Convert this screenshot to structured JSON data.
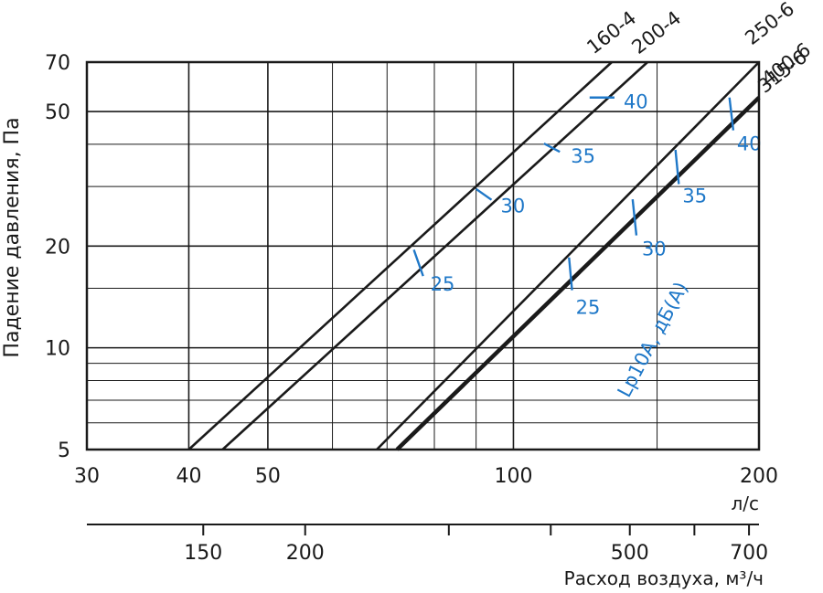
{
  "chart_data": {
    "type": "line",
    "x_scale": "log",
    "y_scale": "log",
    "xlim": [
      30,
      200
    ],
    "ylim": [
      5,
      70
    ],
    "x_ticks": [
      30,
      40,
      50,
      100,
      200
    ],
    "x_tick_labels": [
      "30",
      "40",
      "50",
      "100",
      "200"
    ],
    "x_minor_gridlines": [
      60,
      70,
      80,
      90,
      150
    ],
    "y_ticks": [
      5,
      10,
      20,
      50,
      70
    ],
    "y_tick_labels": [
      "5",
      "10",
      "20",
      "50",
      "70"
    ],
    "y_minor_gridlines": [
      6,
      7,
      8,
      9,
      15,
      30,
      40
    ],
    "xunit": "л/с",
    "ylabel": "Падение давления, Па",
    "secondary_x_ticks": [
      150,
      200,
      500,
      700
    ],
    "secondary_x_tick_labels": [
      "150",
      "200",
      "500",
      "700"
    ],
    "secondary_x_minor_ticks": [
      300,
      400,
      600
    ],
    "secondary_xlabel": "Расход воздуха, м³/ч",
    "grid": true,
    "series": [
      {
        "name": "160-4",
        "x": [
          40,
          132
        ],
        "y": [
          5,
          70
        ],
        "bold": false
      },
      {
        "name": "200-4",
        "x": [
          44,
          146
        ],
        "y": [
          5,
          70
        ],
        "bold": false
      },
      {
        "name": "250-6",
        "x": [
          68,
          200
        ],
        "y": [
          5,
          70
        ],
        "bold": false
      },
      {
        "name": "315-6",
        "x": [
          72,
          200
        ],
        "y": [
          5,
          55
        ],
        "bold": false
      },
      {
        "name": "400-6",
        "x": [
          72,
          200
        ],
        "y": [
          5,
          55
        ],
        "bold": true
      }
    ],
    "series_label_colors": "#1a1a1a",
    "sound_level_marks": {
      "label": "Lp10A, дБ(А)",
      "color": "#1f78c8",
      "marks": [
        {
          "text": "25",
          "x": [
            75.5,
            77.5
          ],
          "y": [
            19.5,
            16.3
          ]
        },
        {
          "text": "30",
          "x": [
            90,
            94
          ],
          "y": [
            29.5,
            27.4
          ]
        },
        {
          "text": "35",
          "x": [
            109,
            114
          ],
          "y": [
            40.2,
            38.0
          ]
        },
        {
          "text": "40",
          "x": [
            124,
            133
          ],
          "y": [
            55,
            55
          ]
        },
        {
          "text": "25",
          "x": [
            117,
            118
          ],
          "y": [
            18.5,
            14.8
          ]
        },
        {
          "text": "30",
          "x": [
            140,
            141.5
          ],
          "y": [
            27.5,
            21.5
          ]
        },
        {
          "text": "35",
          "x": [
            158,
            159.5
          ],
          "y": [
            38.5,
            30.5
          ]
        },
        {
          "text": "40",
          "x": [
            184,
            186
          ],
          "y": [
            55,
            44
          ]
        }
      ]
    }
  }
}
